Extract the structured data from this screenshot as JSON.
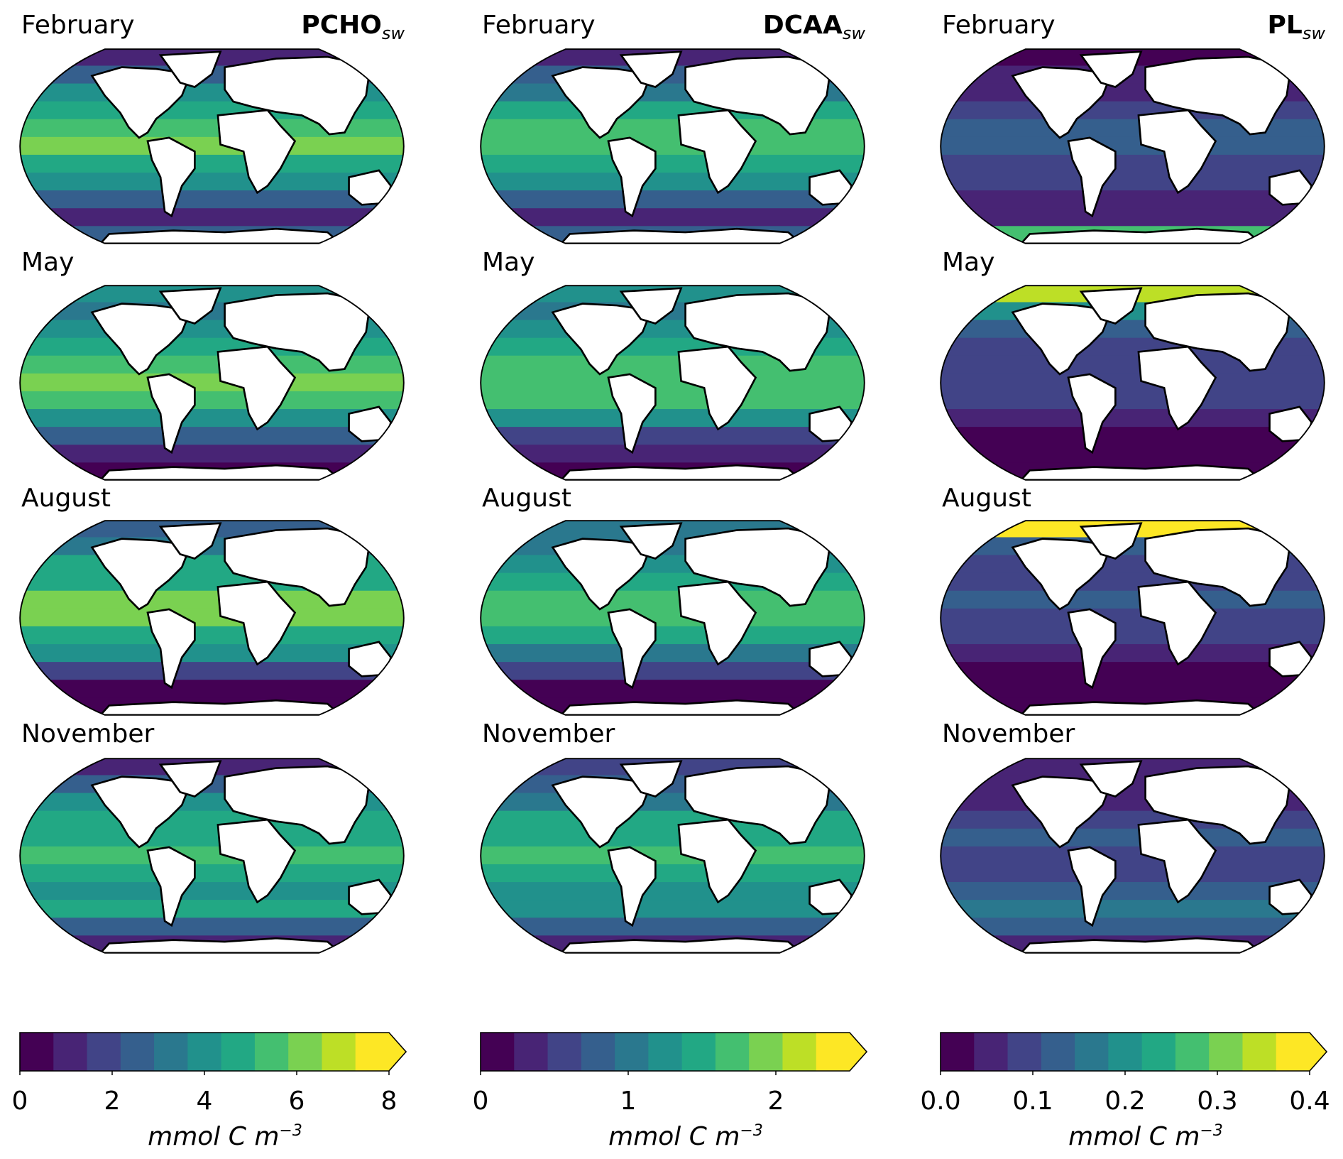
{
  "panels_header": {
    "columns": [
      {
        "name": "PCHO",
        "subscript": "sw"
      },
      {
        "name": "DCAA",
        "subscript": "sw"
      },
      {
        "name": "PL",
        "subscript": "sw"
      }
    ],
    "months": [
      "February",
      "May",
      "August",
      "November"
    ]
  },
  "colorbars": [
    {
      "ticks": [
        "0",
        "2",
        "4",
        "6",
        "8"
      ],
      "tick_values": [
        0,
        2,
        4,
        6,
        8
      ],
      "range": [
        0,
        8
      ],
      "extend": "max",
      "unit": "mmol C m",
      "unit_exp": "−3"
    },
    {
      "ticks": [
        "0",
        "1",
        "2"
      ],
      "tick_values": [
        0,
        1,
        2
      ],
      "range": [
        0,
        2.5
      ],
      "extend": "max",
      "unit": "mmol C m",
      "unit_exp": "−3"
    },
    {
      "ticks": [
        "0.0",
        "0.1",
        "0.2",
        "0.3",
        "0.4"
      ],
      "tick_values": [
        0,
        0.1,
        0.2,
        0.3,
        0.4
      ],
      "range": [
        0,
        0.4
      ],
      "extend": "max",
      "unit": "mmol C m",
      "unit_exp": "−3"
    }
  ],
  "colormap": [
    "#440154",
    "#482475",
    "#414487",
    "#355f8d",
    "#2a788e",
    "#21918c",
    "#22a884",
    "#44bf70",
    "#7ad151",
    "#bddf26",
    "#fde725"
  ],
  "chart_data": {
    "type": "heatmap",
    "projection": "Robinson",
    "description_bands": "approximate zonal-mean values, north to south, in mmol C m^-3",
    "maps": [
      [
        {
          "var": "PCHO",
          "month": "February",
          "zonal": [
            1.5,
            2.5,
            4,
            5,
            6,
            6.5,
            5.5,
            4.5,
            3,
            1,
            3
          ]
        },
        {
          "var": "PCHO",
          "month": "May",
          "zonal": [
            4,
            3.5,
            4,
            5,
            6,
            6.5,
            6,
            4.5,
            2.5,
            1,
            0.5
          ]
        },
        {
          "var": "PCHO",
          "month": "August",
          "zonal": [
            3,
            3.5,
            5,
            5.5,
            6.5,
            6.5,
            5.5,
            4,
            2,
            0.5,
            0.5
          ]
        },
        {
          "var": "PCHO",
          "month": "November",
          "zonal": [
            1.5,
            3,
            4,
            5,
            5.5,
            6,
            5,
            4.5,
            5,
            3,
            1
          ]
        }
      ],
      [
        {
          "var": "DCAA",
          "month": "February",
          "zonal": [
            0.4,
            0.8,
            1.2,
            1.5,
            1.8,
            1.9,
            1.7,
            1.3,
            0.8,
            0.3,
            0.9
          ]
        },
        {
          "var": "DCAA",
          "month": "May",
          "zonal": [
            1.3,
            1.1,
            1.3,
            1.5,
            1.8,
            1.9,
            1.8,
            1.3,
            0.7,
            0.3,
            0.2
          ]
        },
        {
          "var": "DCAA",
          "month": "August",
          "zonal": [
            1,
            1.1,
            1.4,
            1.6,
            1.9,
            1.9,
            1.7,
            1.2,
            0.6,
            0.2,
            0.2
          ]
        },
        {
          "var": "DCAA",
          "month": "November",
          "zonal": [
            0.5,
            0.9,
            1.2,
            1.5,
            1.7,
            1.8,
            1.6,
            1.4,
            1.4,
            0.9,
            0.3
          ]
        }
      ],
      [
        {
          "var": "PL",
          "month": "February",
          "zonal": [
            0.02,
            0.05,
            0.08,
            0.1,
            0.12,
            0.12,
            0.11,
            0.1,
            0.05,
            0.05,
            0.3
          ]
        },
        {
          "var": "PL",
          "month": "May",
          "zonal": [
            0.38,
            0.2,
            0.12,
            0.1,
            0.1,
            0.1,
            0.09,
            0.08,
            0.04,
            0.01,
            0.01
          ]
        },
        {
          "var": "PL",
          "month": "August",
          "zonal": [
            0.4,
            0.15,
            0.1,
            0.1,
            0.12,
            0.1,
            0.09,
            0.07,
            0.04,
            0.01,
            0.01
          ]
        },
        {
          "var": "PL",
          "month": "November",
          "zonal": [
            0.05,
            0.06,
            0.08,
            0.1,
            0.13,
            0.11,
            0.1,
            0.12,
            0.18,
            0.15,
            0.05
          ]
        }
      ]
    ]
  }
}
